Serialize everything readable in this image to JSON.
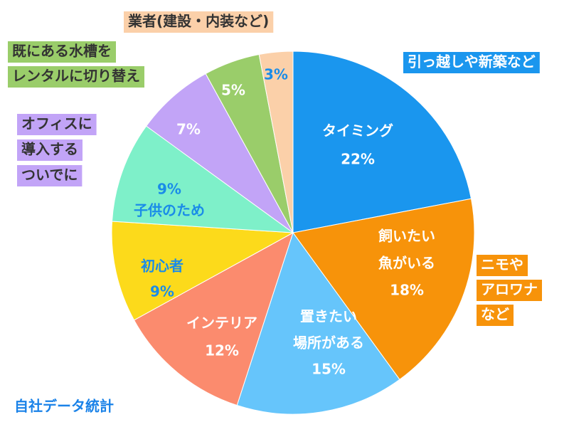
{
  "chart_data": {
    "type": "pie",
    "categories": [
      [
        "タイミング"
      ],
      [
        "飼いたい",
        "魚がいる"
      ],
      [
        "置きたい",
        "場所がある"
      ],
      [
        "インテリア"
      ],
      [
        "初心者"
      ],
      [
        "子供のため"
      ],
      null,
      null,
      null
    ],
    "values": [
      22,
      18,
      15,
      12,
      9,
      9,
      7,
      5,
      3
    ],
    "value_labels": [
      "22%",
      "18%",
      "15%",
      "12%",
      "9%",
      "9%",
      "7%",
      "5%",
      "3%"
    ],
    "colors": [
      "#1a96ee",
      "#f7930a",
      "#66c5fb",
      "#fb8b6e",
      "#fcda1b",
      "#7ef0c9",
      "#c2a4f7",
      "#9acd6a",
      "#fbd0a9"
    ],
    "label_colors": [
      "#ffffff",
      "#ffffff",
      "#ffffff",
      "#ffffff",
      "#1a8ce8",
      "#1a8ce8",
      "#ffffff",
      "#ffffff",
      "#1a8ce8"
    ],
    "annotations": [
      {
        "text": [
          "引っ越しや新築など"
        ],
        "background": "#1a96ee",
        "color": "#ffffff"
      },
      {
        "text": [
          "ニモや",
          "アロワナ",
          "など"
        ],
        "background": "#f7930a",
        "color": "#ffffff"
      },
      {
        "text": [
          "オフィスに",
          "導入する",
          "ついでに"
        ],
        "background": "#c2a4f7",
        "color": "#333333"
      },
      {
        "text": [
          "既にある水槽を",
          "レンタルに切り替え"
        ],
        "background": "#9acd6a",
        "color": "#333333"
      },
      {
        "text": [
          "業者(建設・内装など)"
        ],
        "background": "#fbd0a9",
        "color": "#333333"
      }
    ],
    "source": "自社データ統計"
  }
}
